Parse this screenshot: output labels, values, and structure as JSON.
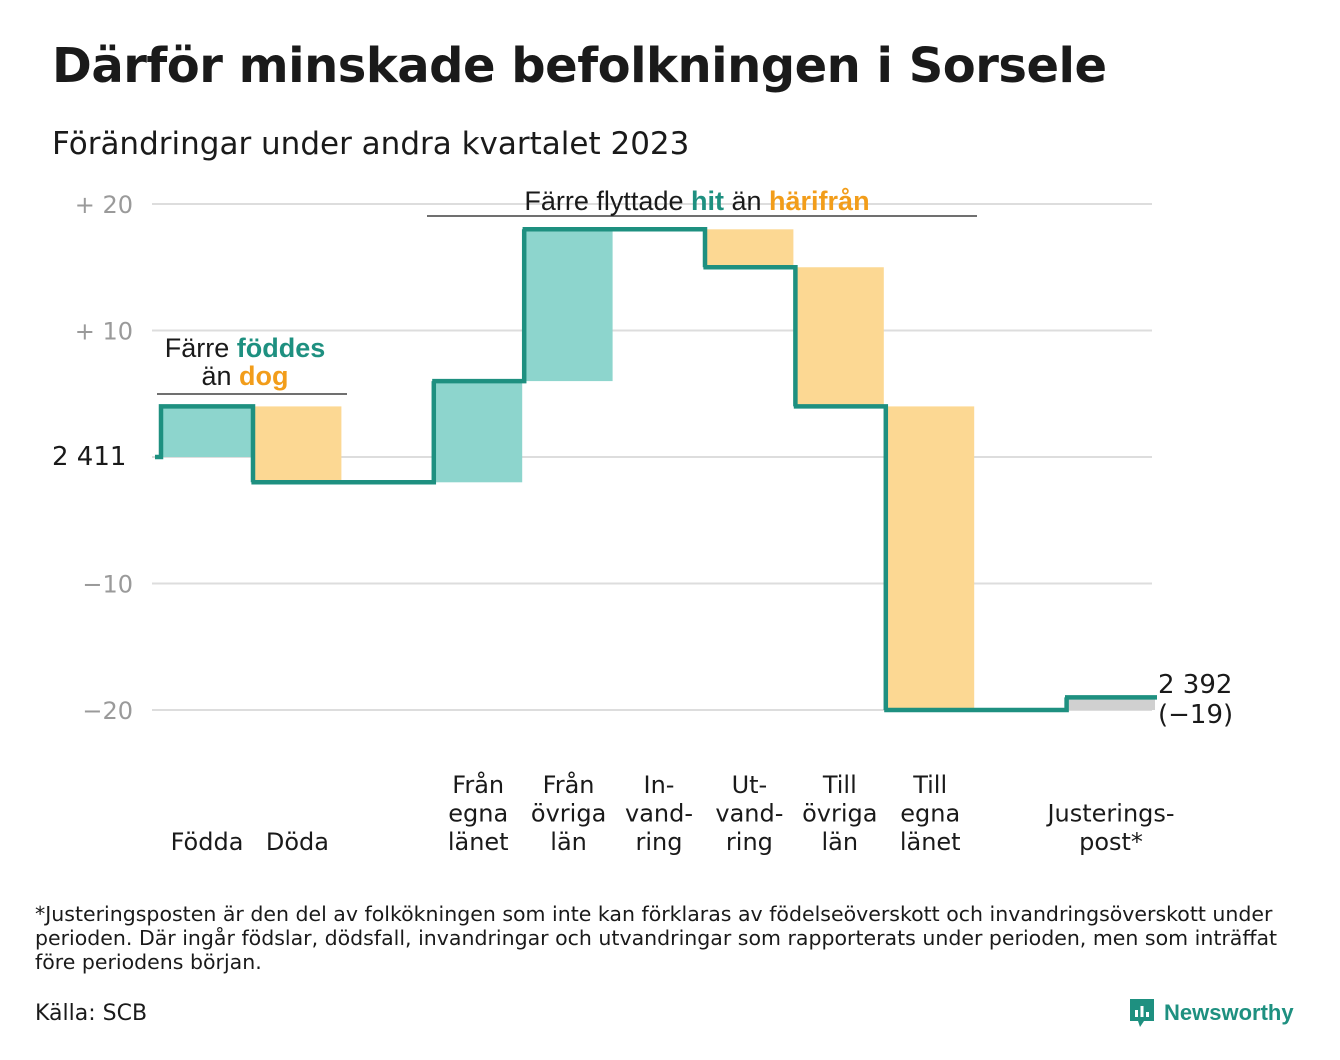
{
  "title": "Därför minskade befolkningen i Sorsele",
  "subtitle": "Förändringar under andra kvartalet 2023",
  "chart_data": {
    "type": "waterfall",
    "start": {
      "label": "2  411",
      "value": 2411
    },
    "end": {
      "value_label": "2 392",
      "change_label": "(−19)",
      "value": 2392,
      "change": -19
    },
    "ylim": [
      -23,
      20
    ],
    "yticks": [
      {
        "value": 20,
        "label": "+  20"
      },
      {
        "value": 10,
        "label": "+  10"
      },
      {
        "value": -10,
        "label": "−10"
      },
      {
        "value": -20,
        "label": "−20"
      }
    ],
    "categories": [
      {
        "lines": [
          "Födda"
        ],
        "value": 4,
        "color": "#8dd5cd"
      },
      {
        "lines": [
          "Döda"
        ],
        "value": -6,
        "color": "#fcd893"
      },
      {
        "lines": [],
        "value": 0,
        "color": "#ffffff"
      },
      {
        "lines": [
          "Från",
          "egna",
          "länet"
        ],
        "value": 8,
        "color": "#8dd5cd"
      },
      {
        "lines": [
          "Från",
          "övriga",
          "län"
        ],
        "value": 12,
        "color": "#8dd5cd"
      },
      {
        "lines": [
          "In-",
          "vand-",
          "ring"
        ],
        "value": 0,
        "color": "#8dd5cd"
      },
      {
        "lines": [
          "Ut-",
          "vand-",
          "ring"
        ],
        "value": -3,
        "color": "#fcd893"
      },
      {
        "lines": [
          "Till",
          "övriga",
          "län"
        ],
        "value": -11,
        "color": "#fcd893"
      },
      {
        "lines": [
          "Till",
          "egna",
          "länet"
        ],
        "value": -24,
        "color": "#fcd893"
      },
      {
        "lines": [],
        "value": 0,
        "color": "#ffffff"
      },
      {
        "lines": [
          "Justerings-",
          "post*"
        ],
        "value": 1,
        "color": "#d0d0d0"
      }
    ],
    "annotations": [
      {
        "line1": [
          {
            "text": "Färre ",
            "style": "plain"
          },
          {
            "text": "föddes",
            "style": "teal"
          }
        ],
        "line2": [
          {
            "text": "än ",
            "style": "plain"
          },
          {
            "text": "dog",
            "style": "orange"
          }
        ]
      },
      {
        "line1": [
          {
            "text": "Färre flyttade ",
            "style": "plain"
          },
          {
            "text": "hit",
            "style": "teal"
          },
          {
            "text": "  än ",
            "style": "plain"
          },
          {
            "text": "härifrån",
            "style": "orange"
          }
        ]
      }
    ],
    "colors": {
      "line": "#1e9080",
      "teal_text": "#1e9080",
      "orange_text": "#f29d1a",
      "increase": "#8dd5cd",
      "decrease": "#fcd893",
      "adjustment": "#d0d0d0",
      "grid": "#dddddd",
      "tick": "#9a9a9a"
    }
  },
  "footnote": "*Justeringsposten är den del av folkökningen som inte kan förklaras av födelseöverskott och invandringsöverskott under perioden. Där ingår födslar, dödsfall, invandringar och utvandringar som rapporterats under perioden, men som inträffat före periodens början.",
  "source": "Källa: SCB",
  "brand": {
    "name": "Newsworthy",
    "icon": "newsworthy-logo-icon",
    "color": "#1e9080"
  }
}
